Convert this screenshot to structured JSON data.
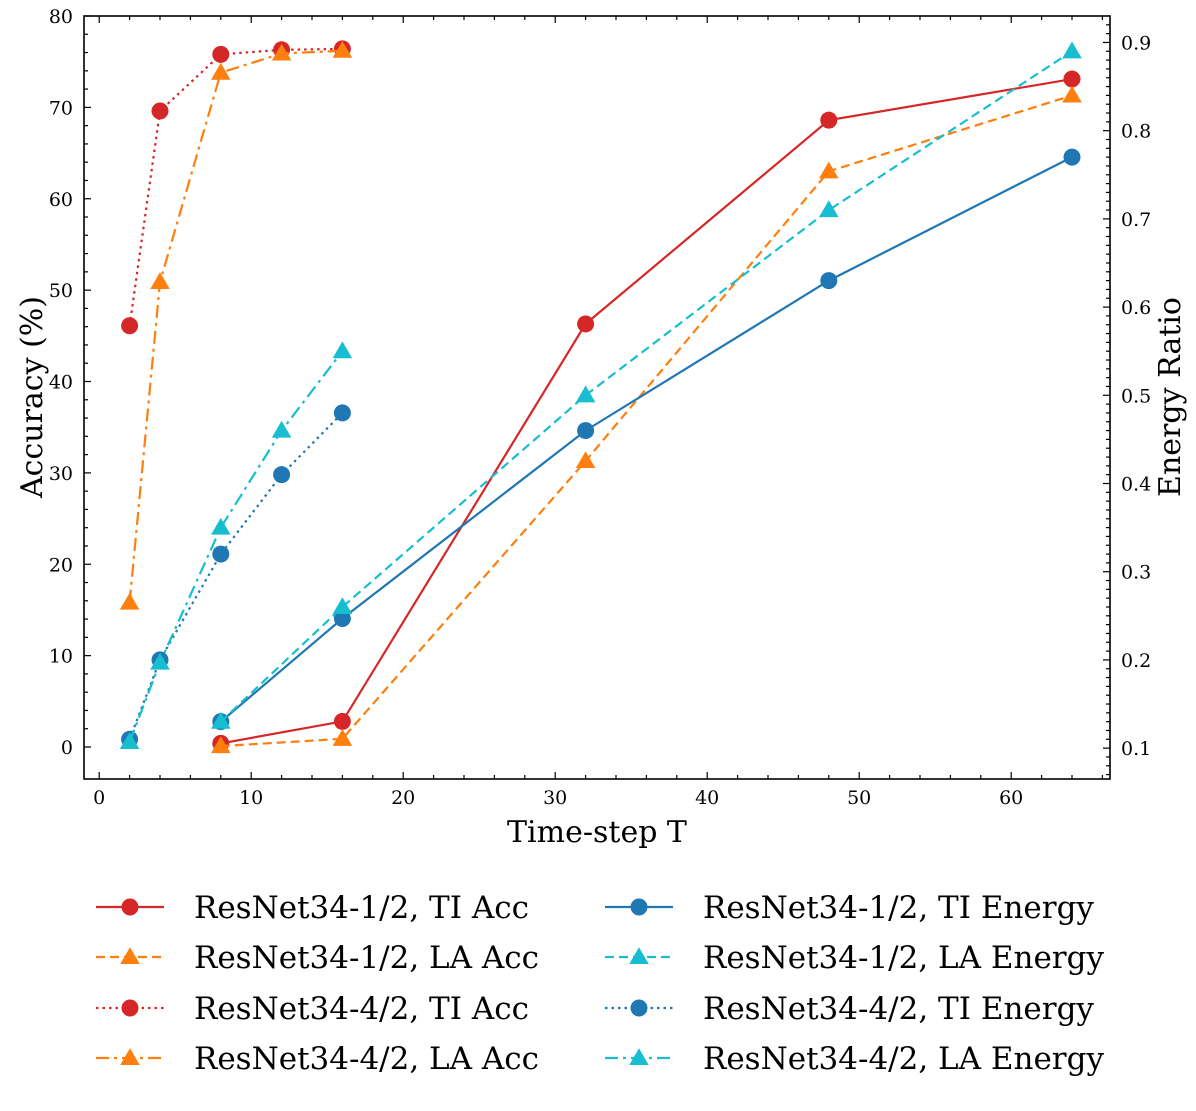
{
  "chart_data": {
    "type": "line",
    "xlabel": "Time-step T",
    "ylabel": "Accuracy (%)",
    "y2label": "Energy Ratio",
    "xlim": [
      -1,
      66.5
    ],
    "ylim": [
      -3.5,
      80
    ],
    "y2lim": [
      0.065,
      0.93
    ],
    "xticks": [
      0,
      10,
      20,
      30,
      40,
      50,
      60
    ],
    "yticks": [
      0,
      10,
      20,
      30,
      40,
      50,
      60,
      70,
      80
    ],
    "y2ticks": [
      0.1,
      0.2,
      0.3,
      0.4,
      0.5,
      0.6,
      0.7,
      0.8,
      0.9
    ],
    "grid": false,
    "legend_placement": "below plot, two columns",
    "series": [
      {
        "name": "ResNet34-1/2, TI Acc",
        "axis": "left",
        "color": "#d62728",
        "linestyle": "solid",
        "marker": "circle",
        "x": [
          8,
          16,
          32,
          48,
          64
        ],
        "y": [
          0.4,
          2.8,
          46.3,
          68.6,
          73.1
        ]
      },
      {
        "name": "ResNet34-1/2, LA Acc",
        "axis": "left",
        "color": "#ff7f0e",
        "linestyle": "dashed",
        "marker": "triangle",
        "x": [
          8,
          16,
          32,
          48,
          64
        ],
        "y": [
          0.1,
          0.9,
          31.3,
          63.0,
          71.3
        ]
      },
      {
        "name": "ResNet34-4/2, TI Acc",
        "axis": "left",
        "color": "#d62728",
        "linestyle": "dotted",
        "marker": "circle",
        "x": [
          2,
          4,
          8,
          12,
          16
        ],
        "y": [
          46.1,
          69.6,
          75.8,
          76.3,
          76.4
        ]
      },
      {
        "name": "ResNet34-4/2, LA Acc",
        "axis": "left",
        "color": "#ff7f0e",
        "linestyle": "dashdot",
        "marker": "triangle",
        "x": [
          2,
          4,
          8,
          12,
          16
        ],
        "y": [
          15.8,
          50.9,
          73.8,
          75.9,
          76.2
        ]
      },
      {
        "name": "ResNet34-1/2, TI Energy",
        "axis": "right",
        "color": "#1f77b4",
        "linestyle": "solid",
        "marker": "circle",
        "x": [
          8,
          16,
          32,
          48,
          64
        ],
        "y": [
          0.13,
          0.247,
          0.46,
          0.63,
          0.77
        ]
      },
      {
        "name": "ResNet34-1/2, LA Energy",
        "axis": "right",
        "color": "#17becf",
        "linestyle": "dashed",
        "marker": "triangle",
        "x": [
          8,
          16,
          32,
          48,
          64
        ],
        "y": [
          0.13,
          0.26,
          0.5,
          0.71,
          0.89
        ]
      },
      {
        "name": "ResNet34-4/2, TI Energy",
        "axis": "right",
        "color": "#1f77b4",
        "linestyle": "dotted",
        "marker": "circle",
        "x": [
          2,
          4,
          8,
          12,
          16
        ],
        "y": [
          0.11,
          0.2,
          0.32,
          0.41,
          0.48
        ]
      },
      {
        "name": "ResNet34-4/2, LA Energy",
        "axis": "right",
        "color": "#17becf",
        "linestyle": "dashdot",
        "marker": "triangle",
        "x": [
          2,
          4,
          8,
          12,
          16
        ],
        "y": [
          0.107,
          0.197,
          0.35,
          0.46,
          0.55
        ]
      }
    ]
  }
}
